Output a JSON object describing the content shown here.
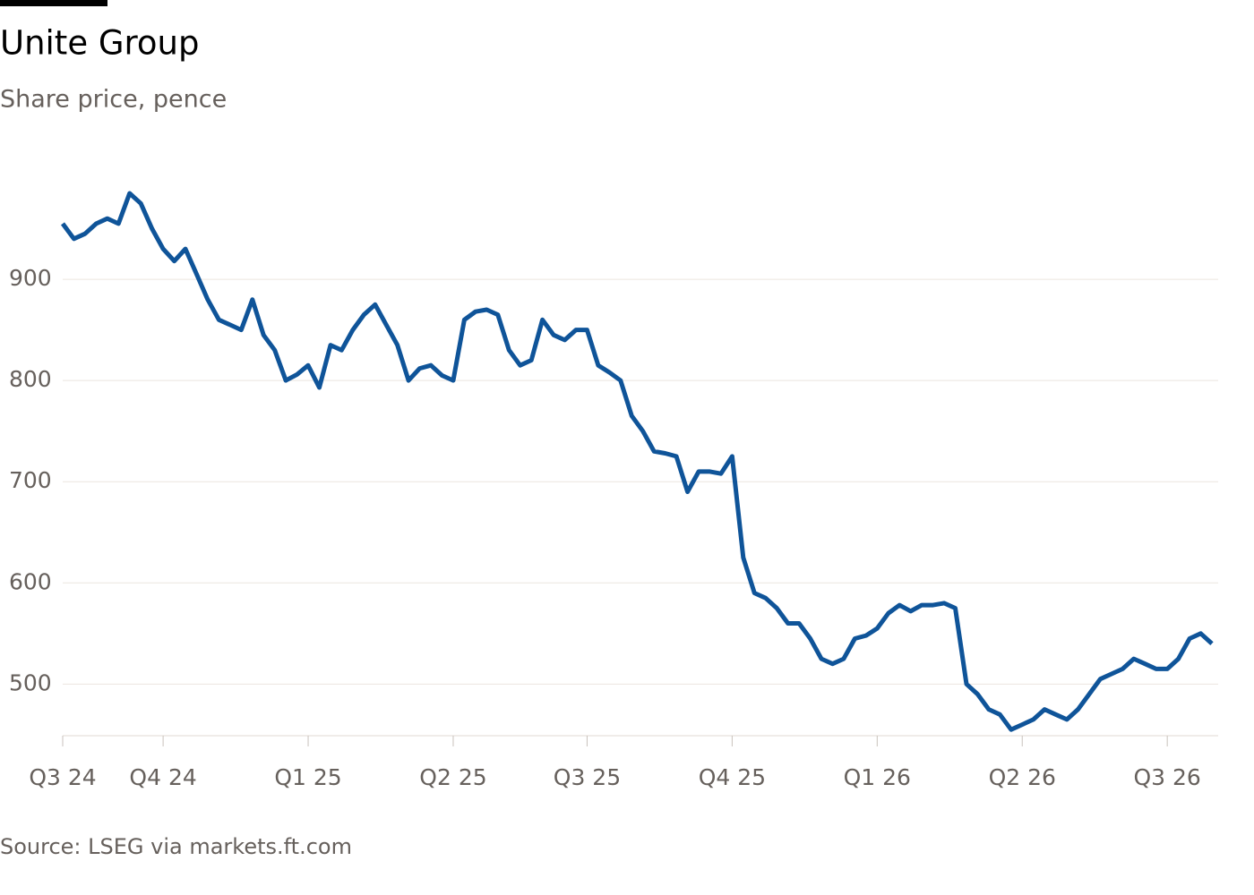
{
  "chart_data": {
    "type": "line",
    "title": "Unite Group",
    "subtitle": "Share price, pence",
    "source": "Source: LSEG via markets.ft.com",
    "categories": [
      "Q3 24",
      null,
      null,
      null,
      null,
      null,
      null,
      null,
      null,
      "Q4 24",
      null,
      null,
      null,
      null,
      null,
      null,
      null,
      null,
      null,
      null,
      null,
      null,
      "Q1 25",
      null,
      null,
      null,
      null,
      null,
      null,
      null,
      null,
      null,
      null,
      null,
      null,
      "Q2 25",
      null,
      null,
      null,
      null,
      null,
      null,
      null,
      null,
      null,
      null,
      null,
      "Q3 25",
      null,
      null,
      null,
      null,
      null,
      null,
      null,
      null,
      null,
      null,
      null,
      null,
      "Q4 25",
      null,
      null,
      null,
      null,
      null,
      null,
      null,
      null,
      null,
      null,
      null,
      null,
      "Q1 26",
      null,
      null,
      null,
      null,
      null,
      null,
      null,
      null,
      null,
      null,
      null,
      null,
      "Q2 26",
      null,
      null,
      null,
      null,
      null,
      null,
      null,
      null,
      null,
      null,
      null,
      null,
      "Q3 26",
      null,
      null,
      null,
      null
    ],
    "series": [
      {
        "name": "Unite Group",
        "color": "#0f5499",
        "values": [
          955,
          940,
          945,
          955,
          960,
          955,
          985,
          975,
          950,
          930,
          918,
          930,
          905,
          880,
          860,
          855,
          850,
          880,
          845,
          830,
          800,
          806,
          815,
          793,
          835,
          830,
          850,
          865,
          875,
          855,
          835,
          800,
          812,
          815,
          805,
          800,
          860,
          868,
          870,
          865,
          830,
          815,
          820,
          860,
          845,
          840,
          850,
          850,
          815,
          808,
          800,
          765,
          750,
          730,
          728,
          725,
          690,
          710,
          710,
          708,
          725,
          625,
          590,
          585,
          575,
          560,
          560,
          545,
          525,
          520,
          525,
          545,
          548,
          555,
          570,
          578,
          572,
          578,
          578,
          580,
          575,
          500,
          490,
          475,
          470,
          455,
          460,
          465,
          475,
          470,
          465,
          475,
          490,
          505,
          510,
          515,
          525,
          520,
          515,
          515,
          525,
          545,
          550,
          540
        ]
      }
    ],
    "ylim": [
      449,
      1000
    ],
    "yticks": [
      500,
      600,
      700,
      800,
      900
    ],
    "grid": true
  }
}
